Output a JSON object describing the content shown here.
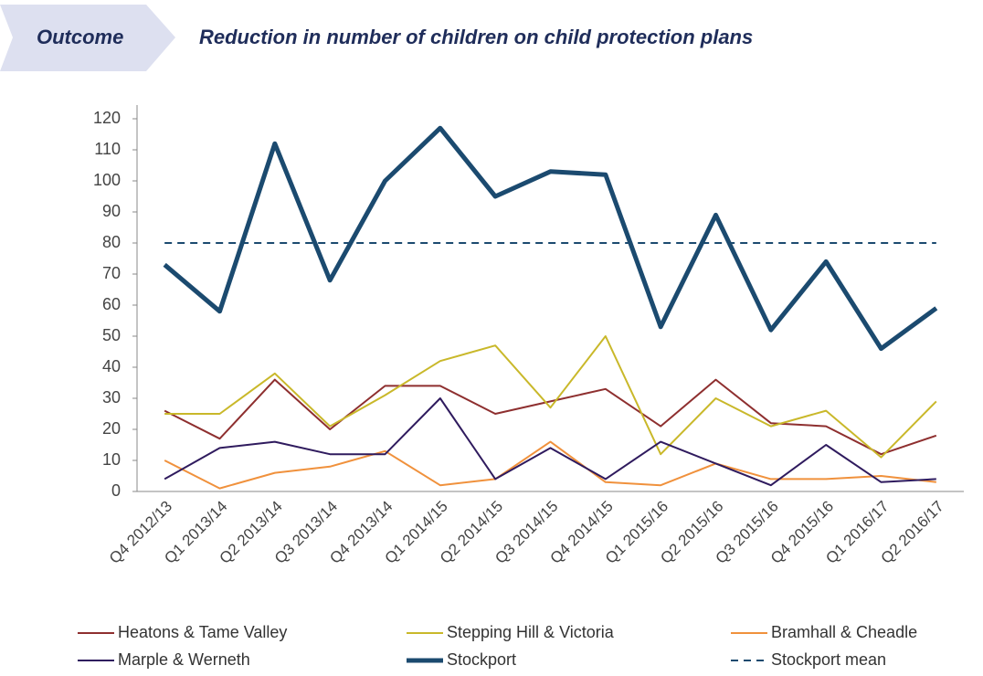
{
  "header": {
    "tag": "Outcome"
  },
  "chart_data": {
    "type": "line",
    "title": "Reduction in number of children on child protection plans",
    "categories": [
      "Q4 2012/13",
      "Q1 2013/14",
      "Q2 2013/14",
      "Q3 2013/14",
      "Q4 2013/14",
      "Q1 2014/15",
      "Q2 2014/15",
      "Q3 2014/15",
      "Q4 2014/15",
      "Q1 2015/16",
      "Q2 2015/16",
      "Q3 2015/16",
      "Q4 2015/16",
      "Q1 2016/17",
      "Q2 2016/17"
    ],
    "series": [
      {
        "name": "Heatons & Tame Valley",
        "color": "#8e2f2f",
        "linewidth": 2,
        "values": [
          26,
          17,
          36,
          20,
          34,
          34,
          25,
          29,
          33,
          21,
          36,
          22,
          21,
          12,
          18
        ]
      },
      {
        "name": "Stepping Hill & Victoria",
        "color": "#c9b82a",
        "linewidth": 2,
        "values": [
          25,
          25,
          38,
          21,
          31,
          42,
          47,
          27,
          50,
          12,
          30,
          21,
          26,
          11,
          29
        ]
      },
      {
        "name": "Bramhall & Cheadle",
        "color": "#f0913c",
        "linewidth": 2,
        "values": [
          10,
          1,
          6,
          8,
          13,
          2,
          4,
          16,
          3,
          2,
          9,
          4,
          4,
          5,
          3
        ]
      },
      {
        "name": "Marple & Werneth",
        "color": "#2f1b5e",
        "linewidth": 2,
        "values": [
          4,
          14,
          16,
          12,
          12,
          30,
          4,
          14,
          4,
          16,
          9,
          2,
          15,
          3,
          4
        ]
      },
      {
        "name": "Stockport",
        "color": "#1b4a6f",
        "linewidth": 5,
        "values": [
          73,
          58,
          112,
          68,
          100,
          117,
          95,
          103,
          102,
          53,
          89,
          52,
          74,
          46,
          59
        ]
      },
      {
        "name": "Stockport mean",
        "color": "#1b4a6f",
        "linewidth": 2,
        "dashed": true,
        "values": [
          80,
          80,
          80,
          80,
          80,
          80,
          80,
          80,
          80,
          80,
          80,
          80,
          80,
          80,
          80
        ]
      }
    ],
    "ylim": [
      0,
      120
    ],
    "yticks": [
      0,
      10,
      20,
      30,
      40,
      50,
      60,
      70,
      80,
      90,
      100,
      110,
      120
    ],
    "legend": "bottom"
  }
}
